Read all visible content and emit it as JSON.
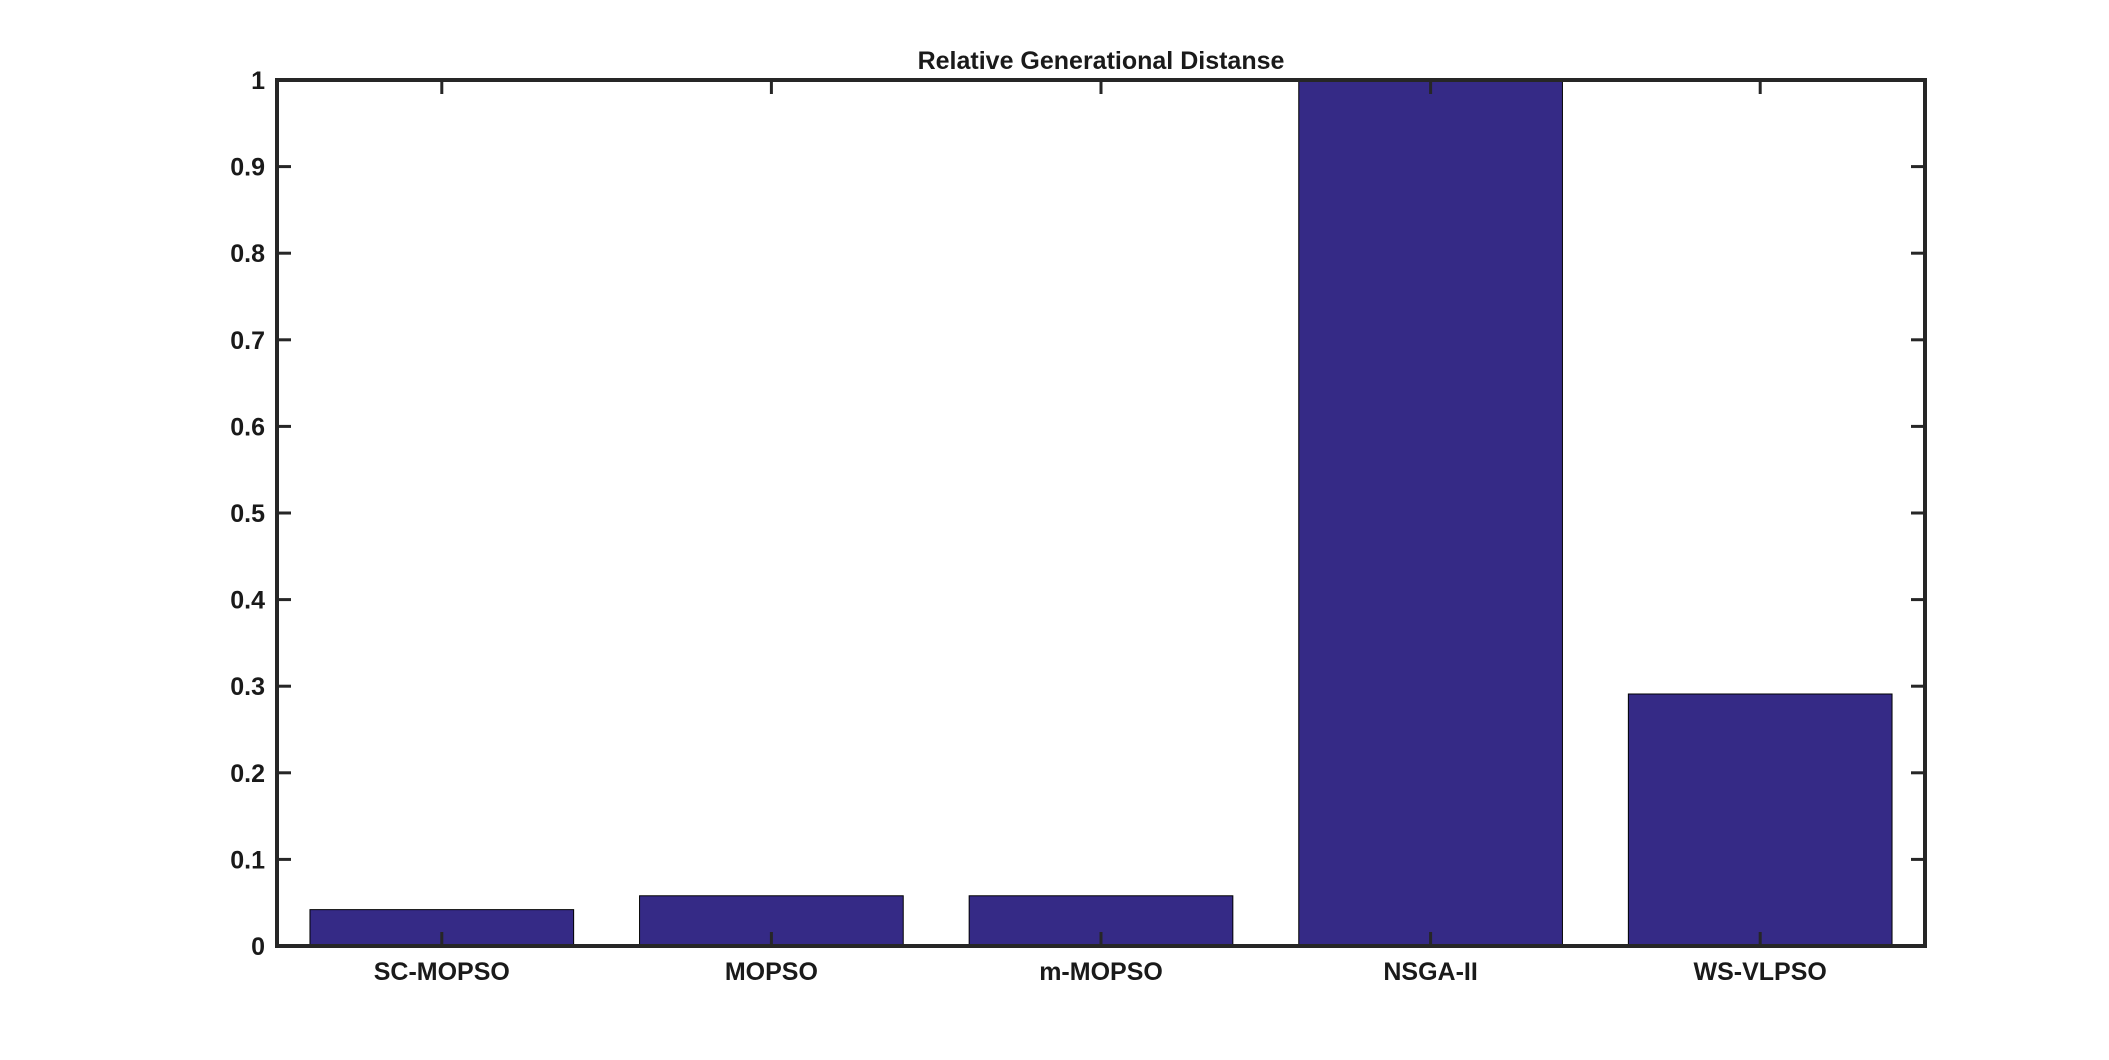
{
  "chart_data": {
    "type": "bar",
    "title": "Relative Generational Distanse",
    "xlabel": "",
    "ylabel": "",
    "categories": [
      "SC-MOPSO",
      "MOPSO",
      "m-MOPSO",
      "NSGA-II",
      "WS-VLPSO"
    ],
    "values": [
      0.042,
      0.058,
      0.058,
      1.0,
      0.291
    ],
    "ylim": [
      0,
      1
    ],
    "yticks": [
      0,
      0.1,
      0.2,
      0.3,
      0.4,
      0.5,
      0.6,
      0.7,
      0.8,
      0.9,
      1
    ],
    "ytick_labels": [
      "0",
      "0.1",
      "0.2",
      "0.3",
      "0.4",
      "0.5",
      "0.6",
      "0.7",
      "0.8",
      "0.9",
      "1"
    ],
    "grid": false,
    "legend": "none",
    "bar_color": "#352a86",
    "axis_color": "#262626"
  }
}
